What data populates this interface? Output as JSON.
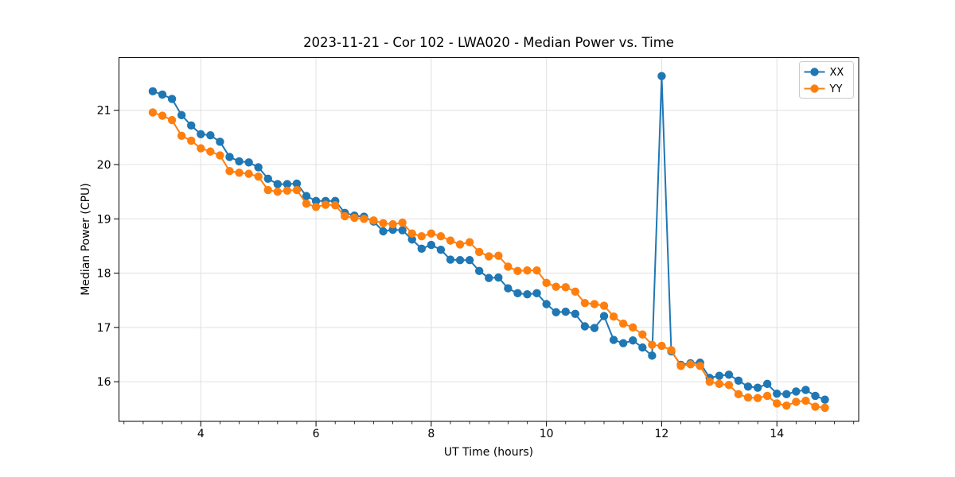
{
  "figure": {
    "background": "#ffffff",
    "spine_color": "#000000",
    "tick_color": "#000000"
  },
  "chart_data": {
    "type": "line",
    "title": "2023-11-21 - Cor 102 - LWA020 - Median Power vs. Time",
    "xlabel": "UT Time (hours)",
    "ylabel": "Median Power (CPU)",
    "xlim": [
      2.58,
      15.42
    ],
    "ylim": [
      15.27,
      21.97
    ],
    "xticks": [
      4,
      6,
      8,
      10,
      12,
      14
    ],
    "yticks": [
      16,
      17,
      18,
      19,
      20,
      21
    ],
    "x_minor_tick_step": 0.33333,
    "grid": true,
    "grid_color": "#e0e0e0",
    "legend": {
      "position": "upper right",
      "entries": [
        "XX",
        "YY"
      ]
    },
    "x": [
      3.1667,
      3.3333,
      3.5,
      3.6667,
      3.8333,
      4.0,
      4.1667,
      4.3333,
      4.5,
      4.6667,
      4.8333,
      5.0,
      5.1667,
      5.3333,
      5.5,
      5.6667,
      5.8333,
      6.0,
      6.1667,
      6.3333,
      6.5,
      6.6667,
      6.8333,
      7.0,
      7.1667,
      7.3333,
      7.5,
      7.6667,
      7.8333,
      8.0,
      8.1667,
      8.3333,
      8.5,
      8.6667,
      8.8333,
      9.0,
      9.1667,
      9.3333,
      9.5,
      9.6667,
      9.8333,
      10.0,
      10.1667,
      10.3333,
      10.5,
      10.6667,
      10.8333,
      11.0,
      11.1667,
      11.3333,
      11.5,
      11.6667,
      11.8333,
      12.0,
      12.1667,
      12.3333,
      12.5,
      12.6667,
      12.8333,
      13.0,
      13.1667,
      13.3333,
      13.5,
      13.6667,
      13.8333,
      14.0,
      14.1667,
      14.3333,
      14.5,
      14.6667,
      14.8333
    ],
    "series": [
      {
        "name": "XX",
        "color": "#1f77b4",
        "values": [
          21.35,
          21.29,
          21.21,
          20.91,
          20.72,
          20.56,
          20.54,
          20.42,
          20.14,
          20.06,
          20.04,
          19.95,
          19.74,
          19.64,
          19.64,
          19.65,
          19.42,
          19.33,
          19.33,
          19.33,
          19.11,
          19.06,
          19.04,
          18.95,
          18.77,
          18.8,
          18.79,
          18.62,
          18.45,
          18.52,
          18.43,
          18.25,
          18.24,
          18.24,
          18.04,
          17.91,
          17.92,
          17.72,
          17.63,
          17.61,
          17.63,
          17.43,
          17.28,
          17.29,
          17.25,
          17.02,
          16.99,
          17.21,
          16.77,
          16.71,
          16.76,
          16.63,
          16.48,
          21.63,
          16.56,
          16.31,
          16.34,
          16.35,
          16.07,
          16.11,
          16.13,
          16.02,
          15.91,
          15.89,
          15.96,
          15.78,
          15.77,
          15.82,
          15.85,
          15.74,
          15.67
        ]
      },
      {
        "name": "YY",
        "color": "#ff7f0e",
        "values": [
          20.96,
          20.9,
          20.82,
          20.53,
          20.44,
          20.3,
          20.24,
          20.17,
          19.88,
          19.85,
          19.83,
          19.78,
          19.53,
          19.5,
          19.52,
          19.53,
          19.28,
          19.22,
          19.26,
          19.25,
          19.05,
          19.02,
          19.0,
          18.97,
          18.92,
          18.9,
          18.93,
          18.73,
          18.68,
          18.73,
          18.68,
          18.6,
          18.53,
          18.57,
          18.39,
          18.31,
          18.32,
          18.12,
          18.04,
          18.05,
          18.05,
          17.82,
          17.75,
          17.74,
          17.66,
          17.45,
          17.43,
          17.4,
          17.2,
          17.07,
          17.0,
          16.87,
          16.68,
          16.66,
          16.58,
          16.29,
          16.32,
          16.29,
          16.0,
          15.96,
          15.94,
          15.77,
          15.71,
          15.7,
          15.74,
          15.6,
          15.56,
          15.63,
          15.65,
          15.54,
          15.52
        ]
      }
    ]
  }
}
